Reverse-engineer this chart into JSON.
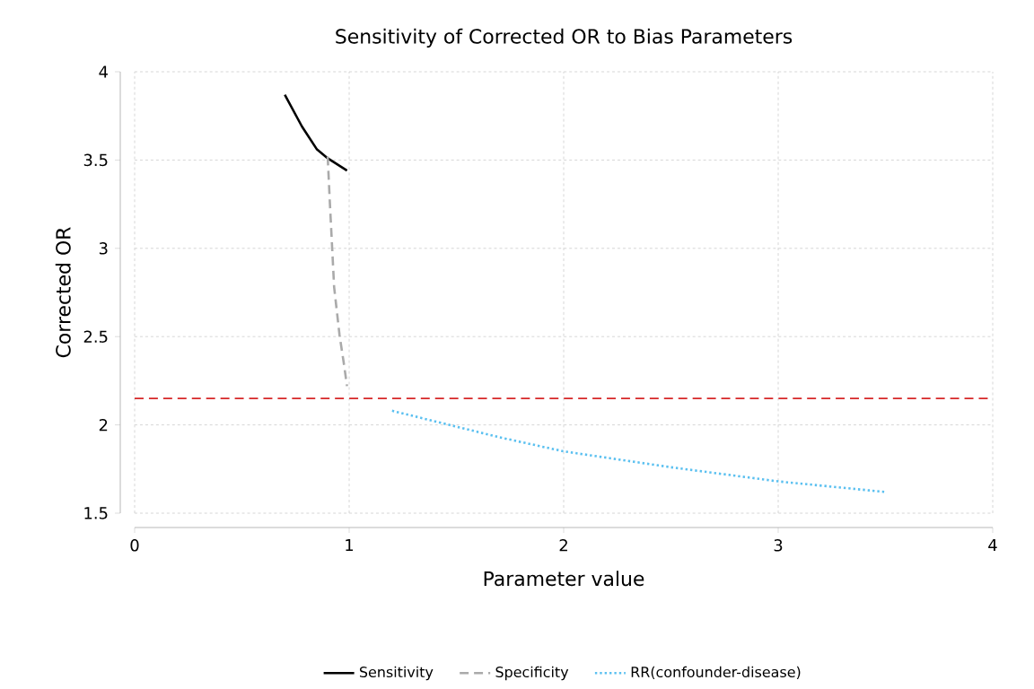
{
  "chart_data": {
    "type": "line",
    "title": "Sensitivity of Corrected OR to Bias Parameters",
    "xlabel": "Parameter value",
    "ylabel": "Corrected OR",
    "xlim": [
      0,
      4
    ],
    "xticks": [
      0,
      1,
      2,
      3,
      4
    ],
    "ylim": [
      1.5,
      4
    ],
    "yticks": [
      1.5,
      2,
      2.5,
      3,
      3.5,
      4
    ],
    "grid": true,
    "legend": "bottom",
    "marker": "none",
    "series": [
      {
        "name": "Sensitivity",
        "color": "#000000",
        "line_style": "solid",
        "x": [
          0.7,
          0.78,
          0.85,
          0.9,
          0.99
        ],
        "values": [
          3.87,
          3.69,
          3.56,
          3.51,
          3.44
        ]
      },
      {
        "name": "Specificity",
        "color": "#aaaaaa",
        "line_style": "dashed",
        "x": [
          0.9,
          0.91,
          0.93,
          0.955,
          0.975,
          0.99
        ],
        "values": [
          3.52,
          3.26,
          2.78,
          2.51,
          2.35,
          2.22
        ]
      },
      {
        "name": "RR(confounder-disease)",
        "color": "#5bc0f0",
        "line_style": "dotted",
        "x": [
          1.2,
          1.4,
          1.7,
          2,
          2.5,
          3,
          3.5
        ],
        "values": [
          2.08,
          2.02,
          1.93,
          1.85,
          1.76,
          1.68,
          1.62
        ]
      }
    ],
    "ref_lines": [
      {
        "axis": "y",
        "value": 2.15,
        "color": "#d62728",
        "line_style": "dashed"
      }
    ]
  }
}
